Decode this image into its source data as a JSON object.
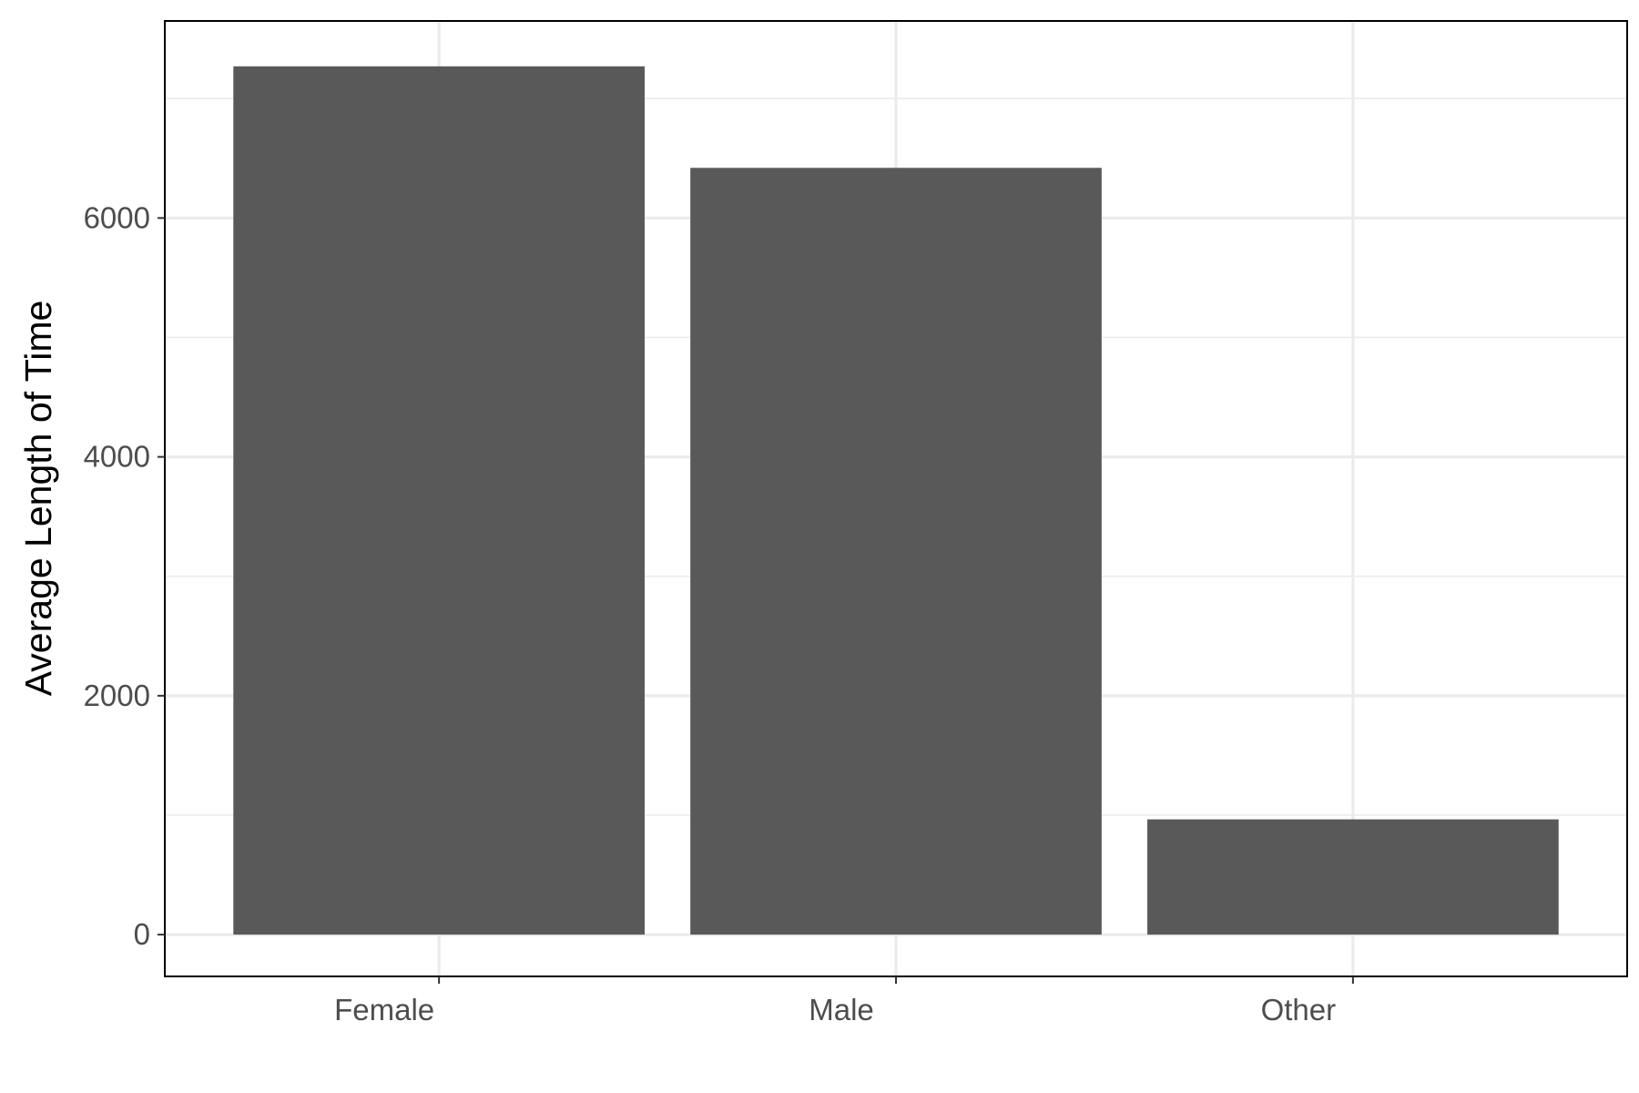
{
  "chart_data": {
    "type": "bar",
    "title": "",
    "xlabel": "",
    "ylabel": "Average Length of Time",
    "categories": [
      "Female",
      "Male",
      "Other"
    ],
    "values": [
      7270,
      6420,
      965
    ],
    "ylim": [
      -350,
      7650
    ],
    "y_ticks": [
      0,
      2000,
      4000,
      6000
    ],
    "y_minor_ticks": [
      1000,
      3000,
      5000,
      7000
    ],
    "grid": true,
    "legend": "none",
    "bar_color": "#595959",
    "grid_color": "#ebebeb"
  }
}
